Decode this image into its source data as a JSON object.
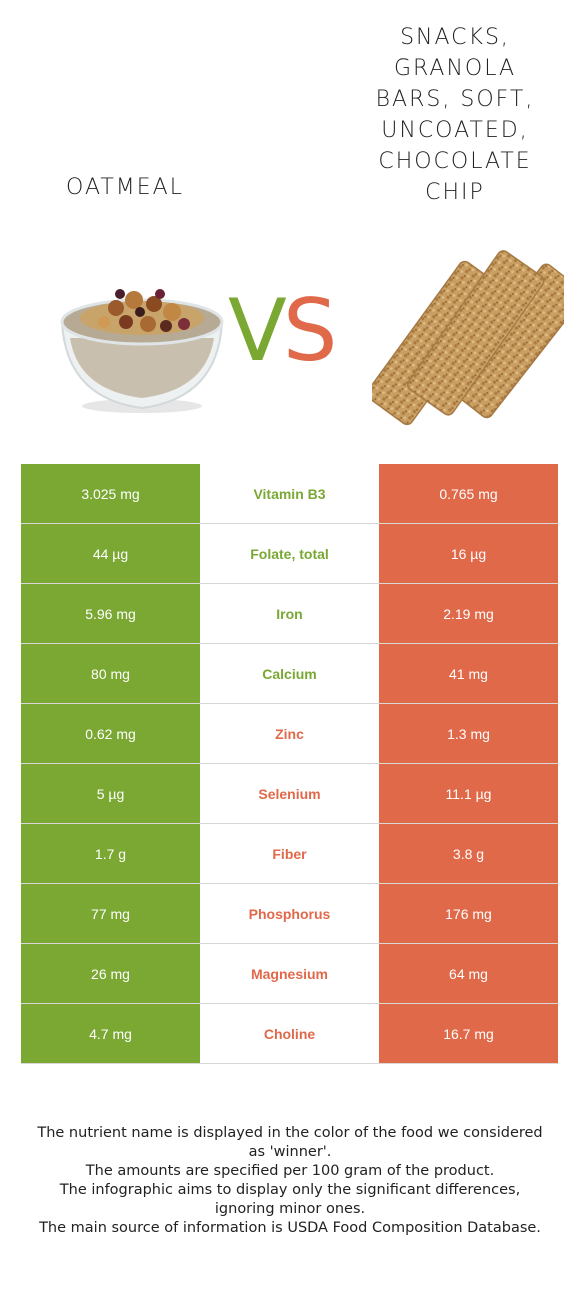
{
  "food_left": {
    "name": "OATMEAL",
    "color": "#7aa833"
  },
  "food_right": {
    "name": "SNACKS, GRANOLA BARS, SOFT, UNCOATED, CHOCOLATE CHIP",
    "color": "#e0694a"
  },
  "vs": {
    "v": "V",
    "s": "S"
  },
  "rows": [
    {
      "nutrient": "Vitamin B3",
      "left": "3.025 mg",
      "right": "0.765 mg",
      "winner": "left"
    },
    {
      "nutrient": "Folate, total",
      "left": "44 µg",
      "right": "16 µg",
      "winner": "left"
    },
    {
      "nutrient": "Iron",
      "left": "5.96 mg",
      "right": "2.19 mg",
      "winner": "left"
    },
    {
      "nutrient": "Calcium",
      "left": "80 mg",
      "right": "41 mg",
      "winner": "left"
    },
    {
      "nutrient": "Zinc",
      "left": "0.62 mg",
      "right": "1.3 mg",
      "winner": "right"
    },
    {
      "nutrient": "Selenium",
      "left": "5 µg",
      "right": "11.1 µg",
      "winner": "right"
    },
    {
      "nutrient": "Fiber",
      "left": "1.7 g",
      "right": "3.8 g",
      "winner": "right"
    },
    {
      "nutrient": "Phosphorus",
      "left": "77 mg",
      "right": "176 mg",
      "winner": "right"
    },
    {
      "nutrient": "Magnesium",
      "left": "26 mg",
      "right": "64 mg",
      "winner": "right"
    },
    {
      "nutrient": "Choline",
      "left": "4.7 mg",
      "right": "16.7 mg",
      "winner": "right"
    }
  ],
  "footer": [
    "The nutrient name is displayed in the color of the food we considered as 'winner'.",
    "The amounts are specified per 100 gram of the product.",
    "The infographic aims to display only the significant differences, ignoring minor ones.",
    "The main source of information is USDA Food Composition Database."
  ]
}
